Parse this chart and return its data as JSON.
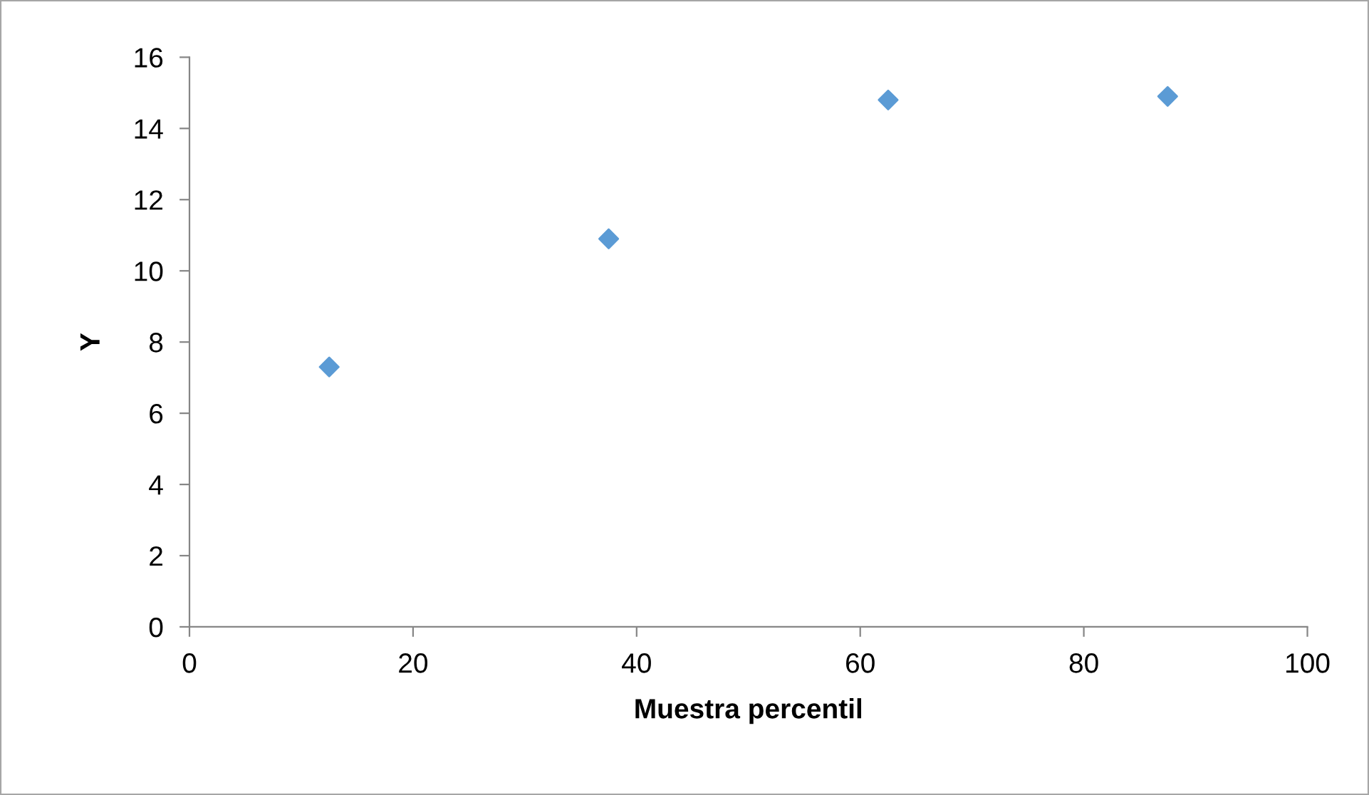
{
  "chart_data": {
    "type": "scatter",
    "xlabel": "Muestra percentil",
    "ylabel": "Y",
    "x": [
      12.5,
      37.5,
      62.5,
      87.5
    ],
    "series": [
      {
        "color": "#5b9bd5",
        "values": [
          7.3,
          10.9,
          14.8,
          14.9
        ]
      }
    ],
    "xlim": [
      0,
      100
    ],
    "xticks": [
      0,
      20,
      40,
      60,
      80,
      100
    ],
    "ylim": [
      0,
      16
    ],
    "yticks": [
      0,
      2,
      4,
      6,
      8,
      10,
      12,
      14,
      16
    ],
    "marker": "diamond"
  }
}
